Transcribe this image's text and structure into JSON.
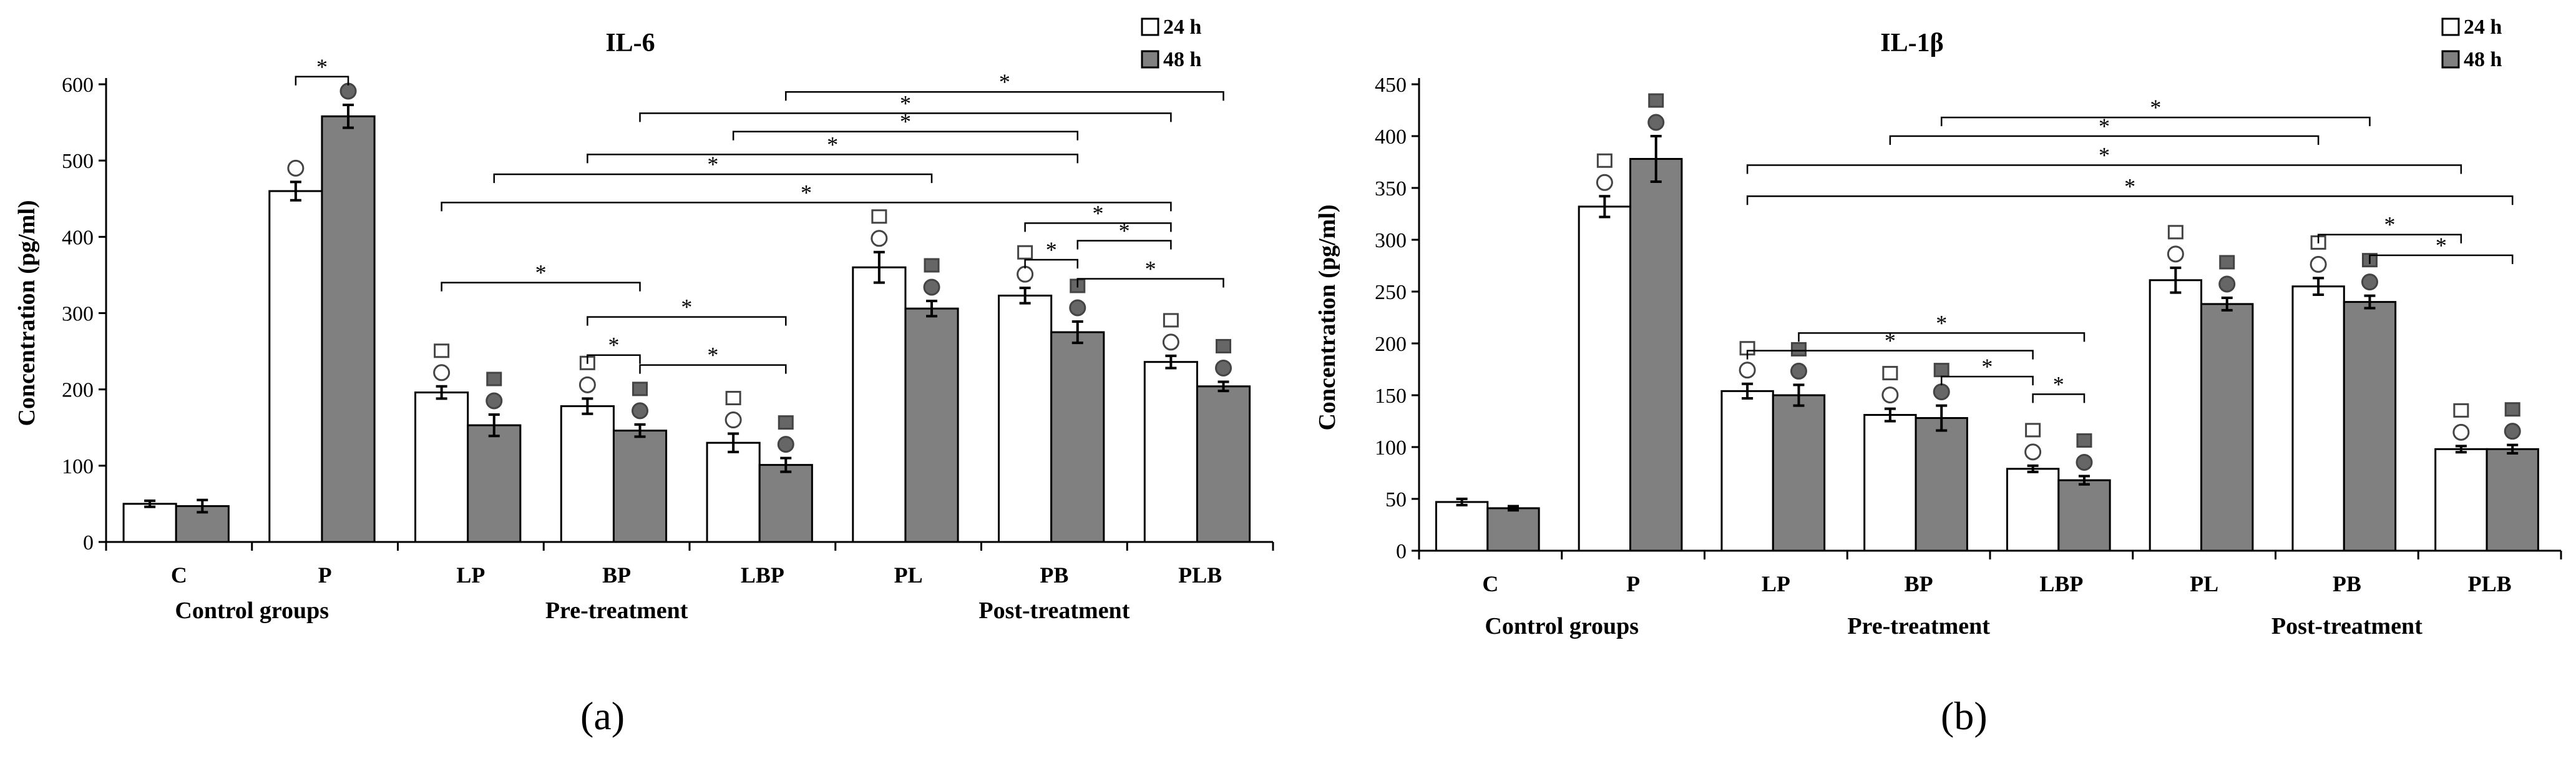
{
  "chart_data": [
    {
      "type": "bar",
      "title": "IL-6",
      "ylabel": "Concentration (pg/ml)",
      "ylim": [
        0,
        600
      ],
      "yticks": [
        "0",
        "100",
        "200",
        "300",
        "400",
        "500",
        "600"
      ],
      "categories": [
        "C",
        "P",
        "LP",
        "BP",
        "LBP",
        "PL",
        "PB",
        "PLB"
      ],
      "groups": [
        {
          "label": "Control groups",
          "from": 0,
          "to": 1
        },
        {
          "label": "Pre-treatment",
          "from": 2,
          "to": 4
        },
        {
          "label": "Post-treatment",
          "from": 5,
          "to": 7
        }
      ],
      "series": [
        {
          "name": "24 h",
          "color": "#ffffff",
          "values": [
            50,
            460,
            196,
            178,
            130,
            360,
            323,
            236
          ],
          "errors": [
            4,
            12,
            8,
            10,
            12,
            20,
            10,
            8
          ]
        },
        {
          "name": "48 h",
          "color": "#808080",
          "values": [
            47,
            558,
            153,
            146,
            101,
            306,
            275,
            204
          ],
          "errors": [
            8,
            15,
            14,
            8,
            9,
            10,
            14,
            6
          ]
        }
      ],
      "markers_24h": [
        [],
        [
          "○"
        ],
        [
          "□",
          "○"
        ],
        [
          "□",
          "○"
        ],
        [
          "□",
          "○"
        ],
        [
          "□",
          "○"
        ],
        [
          "□",
          "○"
        ],
        [
          "□",
          "○"
        ]
      ],
      "markers_48h": [
        [],
        [
          "●"
        ],
        [
          "■",
          "●"
        ],
        [
          "■",
          "●"
        ],
        [
          "■",
          "●"
        ],
        [
          "■",
          "●"
        ],
        [
          "■",
          "●"
        ],
        [
          "■",
          "●"
        ]
      ],
      "significance": [
        {
          "from": [
            1,
            0
          ],
          "to": [
            1,
            1
          ],
          "level": 610,
          "label": "*"
        },
        {
          "from": [
            2,
            0
          ],
          "to": [
            3,
            1
          ],
          "level": 340,
          "label": "*"
        },
        {
          "from": [
            3,
            0
          ],
          "to": [
            4,
            1
          ],
          "level": 295,
          "label": "*"
        },
        {
          "from": [
            3,
            0
          ],
          "to": [
            3,
            1
          ],
          "level": 245,
          "label": "*"
        },
        {
          "from": [
            3,
            1
          ],
          "to": [
            4,
            1
          ],
          "level": 232,
          "label": "*"
        },
        {
          "from": [
            2,
            0
          ],
          "to": [
            7,
            0
          ],
          "level": 445,
          "label": "*"
        },
        {
          "from": [
            3,
            0
          ],
          "to": [
            6,
            1
          ],
          "level": 508,
          "label": "*"
        },
        {
          "from": [
            2,
            1
          ],
          "to": [
            5,
            1
          ],
          "level": 482,
          "label": "*"
        },
        {
          "from": [
            3,
            1
          ],
          "to": [
            7,
            0
          ],
          "level": 562,
          "label": "*"
        },
        {
          "from": [
            4,
            1
          ],
          "to": [
            7,
            1
          ],
          "level": 590,
          "label": "*"
        },
        {
          "from": [
            4,
            0
          ],
          "to": [
            6,
            1
          ],
          "level": 538,
          "label": "*"
        },
        {
          "from": [
            6,
            0
          ],
          "to": [
            7,
            0
          ],
          "level": 418,
          "label": "*"
        },
        {
          "from": [
            6,
            1
          ],
          "to": [
            7,
            0
          ],
          "level": 395,
          "label": "*"
        },
        {
          "from": [
            6,
            0
          ],
          "to": [
            6,
            1
          ],
          "level": 370,
          "label": "*"
        },
        {
          "from": [
            6,
            1
          ],
          "to": [
            7,
            1
          ],
          "level": 345,
          "label": "*"
        }
      ]
    },
    {
      "type": "bar",
      "title": "IL-1β",
      "ylabel": "Concentration (pg/ml)",
      "ylim": [
        0,
        450
      ],
      "yticks": [
        "0",
        "50",
        "100",
        "150",
        "200",
        "250",
        "300",
        "350",
        "400",
        "450"
      ],
      "categories": [
        "C",
        "P",
        "LP",
        "BP",
        "LBP",
        "PL",
        "PB",
        "PLB"
      ],
      "groups": [
        {
          "label": "Control groups",
          "from": 0,
          "to": 1
        },
        {
          "label": "Pre-treatment",
          "from": 2,
          "to": 4
        },
        {
          "label": "Post-treatment",
          "from": 5,
          "to": 7
        }
      ],
      "series": [
        {
          "name": "24 h",
          "color": "#ffffff",
          "values": [
            47,
            332,
            154,
            131,
            79,
            261,
            255,
            98
          ],
          "errors": [
            3,
            10,
            7,
            6,
            3,
            12,
            8,
            3
          ]
        },
        {
          "name": "48 h",
          "color": "#808080",
          "values": [
            41,
            378,
            150,
            128,
            68,
            238,
            240,
            98
          ],
          "errors": [
            2,
            22,
            10,
            12,
            4,
            6,
            6,
            4
          ]
        }
      ],
      "markers_24h": [
        [],
        [
          "□",
          "○"
        ],
        [
          "□",
          "○"
        ],
        [
          "□",
          "○"
        ],
        [
          "□",
          "○"
        ],
        [
          "□",
          "○"
        ],
        [
          "□",
          "○"
        ],
        [
          "□",
          "○"
        ]
      ],
      "markers_48h": [
        [],
        [
          "■",
          "●"
        ],
        [
          "■",
          "●"
        ],
        [
          "■",
          "●"
        ],
        [
          "■",
          "●"
        ],
        [
          "■",
          "●"
        ],
        [
          "■",
          "●"
        ],
        [
          "■",
          "●"
        ]
      ],
      "significance": [
        {
          "from": [
            2,
            1
          ],
          "to": [
            4,
            1
          ],
          "level": 210,
          "label": "*"
        },
        {
          "from": [
            2,
            0
          ],
          "to": [
            4,
            0
          ],
          "level": 193,
          "label": "*"
        },
        {
          "from": [
            3,
            1
          ],
          "to": [
            4,
            0
          ],
          "level": 168,
          "label": "*"
        },
        {
          "from": [
            4,
            0
          ],
          "to": [
            4,
            1
          ],
          "level": 151,
          "label": "*"
        },
        {
          "from": [
            3,
            1
          ],
          "to": [
            6,
            1
          ],
          "level": 418,
          "label": "*"
        },
        {
          "from": [
            3,
            0
          ],
          "to": [
            6,
            0
          ],
          "level": 400,
          "label": "*"
        },
        {
          "from": [
            2,
            0
          ],
          "to": [
            7,
            0
          ],
          "level": 372,
          "label": "*"
        },
        {
          "from": [
            2,
            0
          ],
          "to": [
            7,
            1
          ],
          "level": 342,
          "label": "*"
        },
        {
          "from": [
            6,
            0
          ],
          "to": [
            7,
            0
          ],
          "level": 305,
          "label": "*"
        },
        {
          "from": [
            6,
            1
          ],
          "to": [
            7,
            1
          ],
          "level": 285,
          "label": "*"
        }
      ]
    }
  ],
  "panels": [
    "(a)",
    "(b)"
  ],
  "axis_groups_a": [
    "Control groups",
    "Pre-treatment",
    "Post-treatment"
  ],
  "axis_groups_b": [
    "Control groups",
    "Pre-treatment",
    "Post-treatment"
  ]
}
